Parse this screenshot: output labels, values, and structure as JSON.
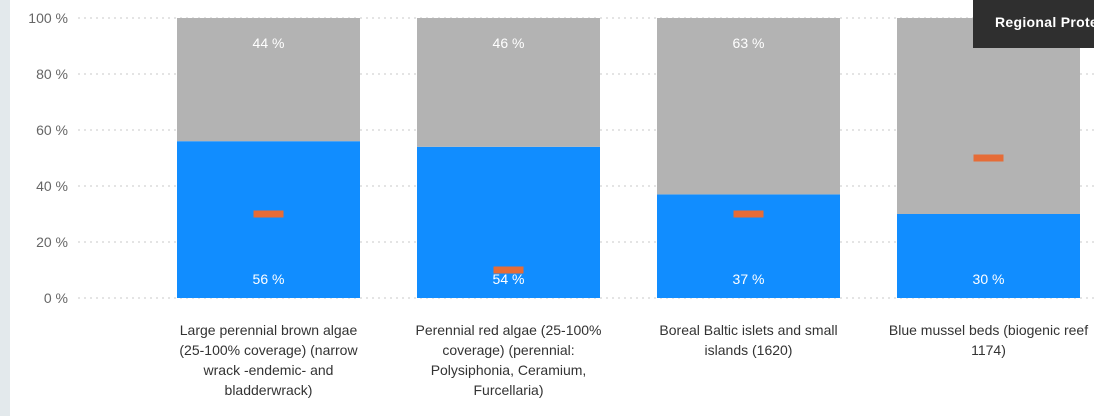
{
  "chart_data": {
    "type": "bar",
    "stacked": true,
    "y_axis_unit": "%",
    "ylim": [
      0,
      100
    ],
    "y_ticks": [
      0,
      20,
      40,
      60,
      80,
      100
    ],
    "y_tick_labels": [
      "0 %",
      "20 %",
      "40 %",
      "60 %",
      "80 %",
      "100 %"
    ],
    "grid": true,
    "categories": [
      "Large perennial brown algae (25-100% coverage) (narrow wrack -endemic- and bladderwrack)",
      "Perennial red algae (25-100% coverage) (perennial: Polysiphonia, Ceramium, Furcellaria)",
      "Boreal Baltic islets and small islands (1620)",
      "Blue mussel beds (biogenic reef 1174)"
    ],
    "category_label_lines": [
      [
        "Large perennial brown algae",
        "(25-100% coverage) (narrow",
        "wrack -endemic- and",
        "bladderwrack)"
      ],
      [
        "Perennial red algae (25-100%",
        "coverage) (perennial:",
        "Polysiphonia, Ceramium,",
        "Furcellaria)"
      ],
      [
        "Boreal Baltic islets and small",
        "islands (1620)"
      ],
      [
        "Blue mussel beds (biogenic reef",
        "1174)"
      ]
    ],
    "series": [
      {
        "values": [
          56,
          54,
          37,
          30
        ],
        "labels": [
          "56 %",
          "54 %",
          "37 %",
          "30 %"
        ],
        "color": "#118dff"
      },
      {
        "values": [
          44,
          46,
          63,
          70
        ],
        "labels": [
          "44 %",
          "46 %",
          "63 %",
          ""
        ],
        "color": "#b3b3b3"
      }
    ],
    "markers": {
      "values": [
        30,
        10,
        30,
        50
      ],
      "color": "#e66c37"
    }
  },
  "tooltip": {
    "text": "Regional Protected"
  }
}
